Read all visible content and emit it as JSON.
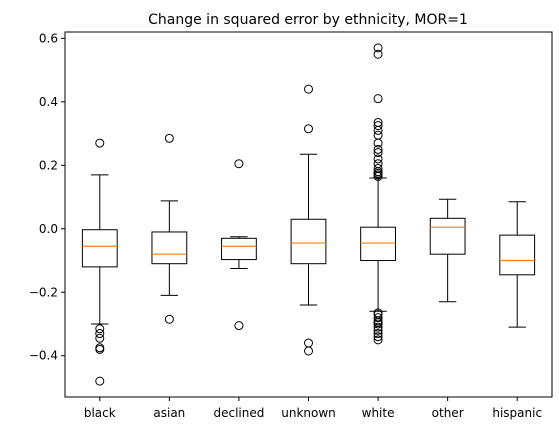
{
  "chart_data": {
    "type": "box",
    "title": "Change in squared error by ethnicity, MOR=1",
    "xlabel": "",
    "ylabel": "",
    "ylim": [
      -0.53,
      0.62
    ],
    "yticks": [
      -0.4,
      -0.2,
      0.0,
      0.2,
      0.4,
      0.6
    ],
    "ytick_labels": [
      "−0.4",
      "−0.2",
      "0.0",
      "0.2",
      "0.4",
      "0.6"
    ],
    "grid": false,
    "categories": [
      "black",
      "asian",
      "declined",
      "unknown",
      "white",
      "other",
      "hispanic"
    ],
    "boxes": [
      {
        "category": "black",
        "whisker_low": -0.3,
        "q1": -0.12,
        "median": -0.055,
        "q3": -0.003,
        "whisker_high": 0.17,
        "outliers": [
          0.27,
          -0.315,
          -0.33,
          -0.345,
          -0.375,
          -0.38,
          -0.48
        ]
      },
      {
        "category": "asian",
        "whisker_low": -0.21,
        "q1": -0.11,
        "median": -0.08,
        "q3": -0.01,
        "whisker_high": 0.088,
        "outliers": [
          0.285,
          -0.285
        ]
      },
      {
        "category": "declined",
        "whisker_low": -0.125,
        "q1": -0.097,
        "median": -0.055,
        "q3": -0.03,
        "whisker_high": -0.025,
        "outliers": [
          0.205,
          -0.305
        ]
      },
      {
        "category": "unknown",
        "whisker_low": -0.24,
        "q1": -0.11,
        "median": -0.045,
        "q3": 0.03,
        "whisker_high": 0.235,
        "outliers": [
          0.44,
          0.315,
          -0.36,
          -0.385
        ]
      },
      {
        "category": "white",
        "whisker_low": -0.26,
        "q1": -0.1,
        "median": -0.045,
        "q3": 0.005,
        "whisker_high": 0.16,
        "outliers": [
          0.57,
          0.55,
          0.41,
          0.335,
          0.325,
          0.31,
          0.295,
          0.27,
          0.25,
          0.24,
          0.22,
          0.205,
          0.19,
          0.18,
          0.175,
          0.17,
          0.165,
          -0.265,
          -0.27,
          -0.28,
          -0.29,
          -0.295,
          -0.3,
          -0.31,
          -0.32,
          -0.33,
          -0.34,
          -0.35
        ]
      },
      {
        "category": "other",
        "whisker_low": -0.23,
        "q1": -0.08,
        "median": 0.005,
        "q3": 0.033,
        "whisker_high": 0.093,
        "outliers": []
      },
      {
        "category": "hispanic",
        "whisker_low": -0.31,
        "q1": -0.145,
        "median": -0.1,
        "q3": -0.02,
        "whisker_high": 0.085,
        "outliers": []
      }
    ],
    "colors": {
      "box": "#000000",
      "median": "#ff7f0e",
      "outlier_edge": "#000000",
      "background": "#ffffff"
    }
  }
}
